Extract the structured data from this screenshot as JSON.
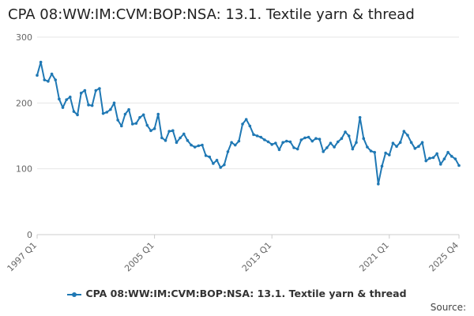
{
  "colors": {
    "series": "#1f78b4",
    "grid": "#e6e6e6",
    "axis": "#cccccc"
  },
  "source_label": "Source:",
  "chart_data": {
    "type": "line",
    "title": "CPA 08:WW:IM:CVM:BOP:NSA: 13.1. Textile yarn & thread",
    "xlabel": "",
    "ylabel": "",
    "ylim": [
      0,
      300
    ],
    "yticks": [
      "0",
      "100",
      "200",
      "300"
    ],
    "xticks": [
      "1997 Q1",
      "2005 Q1",
      "2013 Q1",
      "2021 Q1",
      "2025 Q4"
    ],
    "grid": true,
    "legend_position": "bottom",
    "x_start": "1997 Q1",
    "x_end": "2025 Q4",
    "series": [
      {
        "name": "CPA 08:WW:IM:CVM:BOP:NSA: 13.1. Textile yarn & thread",
        "values": [
          242,
          262,
          235,
          233,
          244,
          235,
          206,
          193,
          205,
          209,
          187,
          182,
          215,
          219,
          197,
          196,
          219,
          222,
          184,
          186,
          190,
          200,
          174,
          165,
          183,
          190,
          168,
          169,
          178,
          182,
          166,
          158,
          161,
          183,
          147,
          143,
          157,
          158,
          140,
          147,
          153,
          143,
          136,
          133,
          135,
          136,
          120,
          118,
          108,
          113,
          102,
          106,
          126,
          140,
          136,
          142,
          168,
          175,
          165,
          152,
          150,
          148,
          144,
          141,
          137,
          139,
          129,
          140,
          142,
          141,
          132,
          130,
          144,
          147,
          148,
          142,
          146,
          145,
          126,
          132,
          139,
          133,
          141,
          146,
          156,
          150,
          130,
          140,
          178,
          146,
          133,
          127,
          125,
          77,
          104,
          124,
          121,
          139,
          134,
          140,
          157,
          151,
          140,
          131,
          134,
          140,
          112,
          116,
          117,
          123,
          107,
          115,
          125,
          119,
          115,
          105
        ]
      }
    ]
  }
}
